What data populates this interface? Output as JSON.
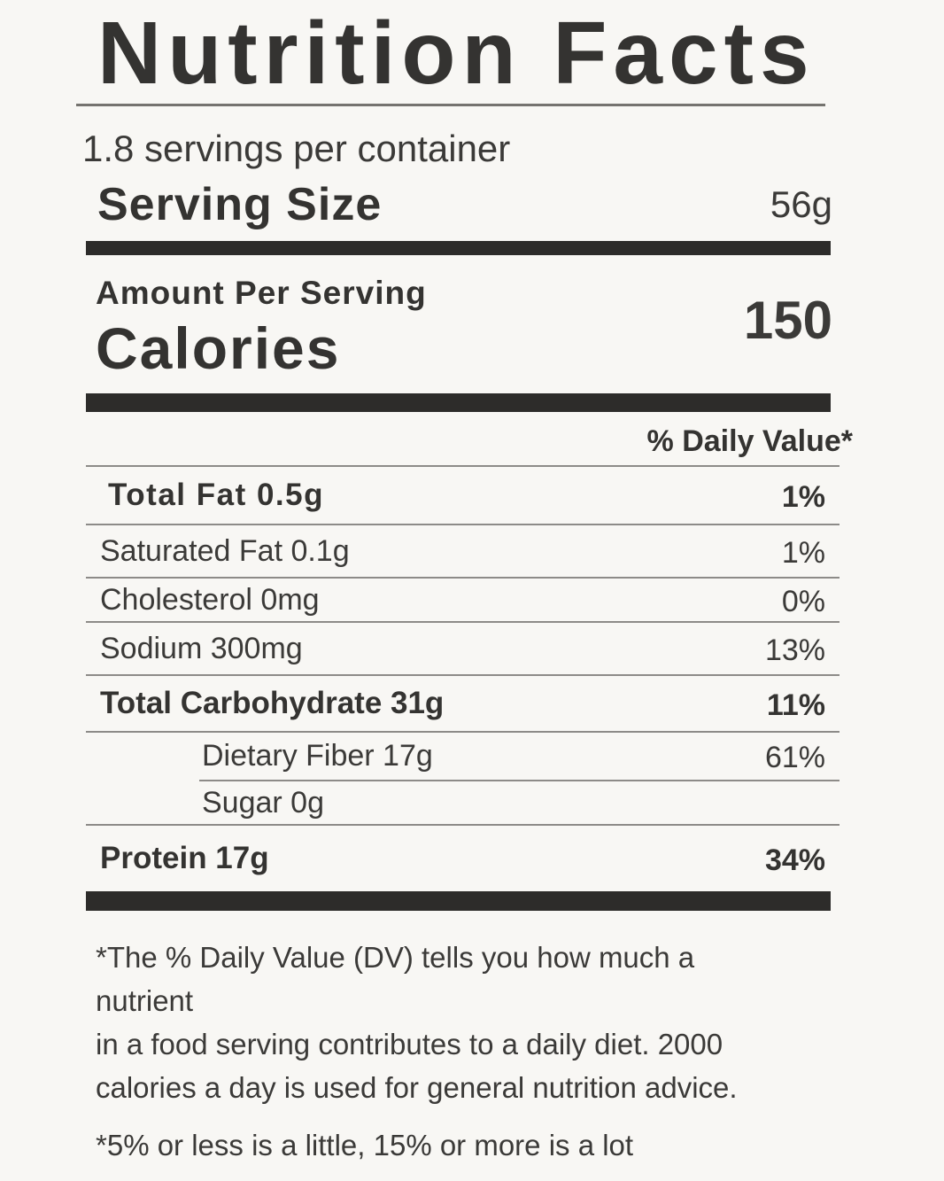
{
  "label": {
    "title": "Nutrition Facts",
    "servings_per_container": "1.8 servings per container",
    "serving_size_label": "Serving Size",
    "serving_size_value": "56g",
    "amount_per_serving_label": "Amount Per Serving",
    "calories_label": "Calories",
    "calories_value": "150",
    "daily_value_header": "% Daily Value*",
    "nutrients": [
      {
        "name": "Total Fat 0.5g",
        "daily_value": "1%",
        "emphasis": true,
        "indent": false,
        "divider": "full"
      },
      {
        "name": "Saturated Fat 0.1g",
        "daily_value": "1%",
        "emphasis": false,
        "indent": false,
        "divider": "full"
      },
      {
        "name": "Cholesterol 0mg",
        "daily_value": "0%",
        "emphasis": false,
        "indent": false,
        "divider": "full"
      },
      {
        "name": "Sodium 300mg",
        "daily_value": "13%",
        "emphasis": false,
        "indent": false,
        "divider": "full"
      },
      {
        "name": "Total Carbohydrate 31g",
        "daily_value": "11%",
        "emphasis": true,
        "indent": false,
        "divider": "full"
      },
      {
        "name": "Dietary Fiber 17g",
        "daily_value": "61%",
        "emphasis": false,
        "indent": true,
        "divider": "indent"
      },
      {
        "name": "Sugar 0g",
        "daily_value": "",
        "emphasis": false,
        "indent": true,
        "divider": "full"
      },
      {
        "name": "Protein 17g",
        "daily_value": "34%",
        "emphasis": true,
        "indent": false,
        "divider": "none"
      }
    ],
    "footnote_lines": [
      "*The % Daily Value (DV) tells you how much a",
      "nutrient",
      "in a food serving contributes to a daily diet. 2000",
      "calories a day is used for general nutrition advice."
    ],
    "footnote2": "*5% or less is a little, 15% or more is a lot",
    "colors": {
      "background": "#f8f7f4",
      "text": "#3b3a38",
      "heavy_text": "#343331",
      "bar": "#2d2c2a",
      "divider": "#8d8b88",
      "rule": "#75736f"
    }
  }
}
